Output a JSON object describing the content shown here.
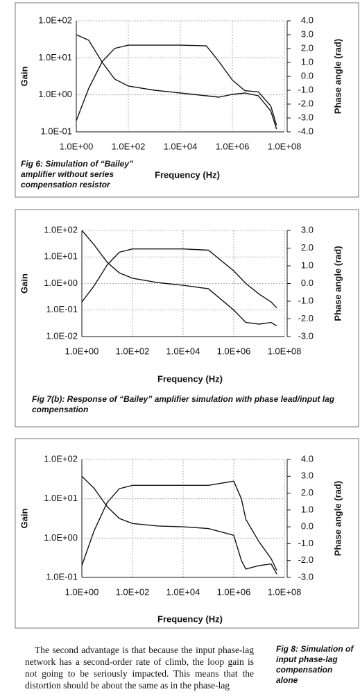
{
  "chart_data": [
    {
      "type": "line",
      "xlabel": "Frequency (Hz)",
      "ylabel": "Gain",
      "y2label": "Phase angle (rad)",
      "caption": "Fig 6: Simulation of “Bailey” amplifier without series compensation resistor",
      "xscale": "log",
      "yscale": "log",
      "grid": true,
      "x": [
        1,
        3,
        10,
        30,
        100,
        1000,
        10000,
        100000,
        300000,
        1000000,
        3000000,
        10000000,
        30000000,
        50000000
      ],
      "xlim": [
        1,
        100000000
      ],
      "xticks": [
        {
          "value": 1,
          "label": "1.0E+00"
        },
        {
          "value": 100,
          "label": "1.0E+02"
        },
        {
          "value": 10000,
          "label": "1.0E+04"
        },
        {
          "value": 1000000,
          "label": "1.0E+06"
        },
        {
          "value": 100000000,
          "label": "1.0E+08"
        }
      ],
      "ylim": [
        0.1,
        100
      ],
      "yticks": [
        {
          "value": 0.1,
          "label": "1.0E-01"
        },
        {
          "value": 1,
          "label": "1.0E+00"
        },
        {
          "value": 10,
          "label": "1.0E+01"
        },
        {
          "value": 100,
          "label": "1.0E+02"
        }
      ],
      "y2lim": [
        -4,
        4
      ],
      "y2ticks": [
        {
          "value": -4,
          "label": "-4.0"
        },
        {
          "value": -3,
          "label": "-3.0"
        },
        {
          "value": -2,
          "label": "-2.0"
        },
        {
          "value": -1,
          "label": "-1.0"
        },
        {
          "value": 0,
          "label": "0.0"
        },
        {
          "value": 1,
          "label": "1.0"
        },
        {
          "value": 2,
          "label": "2.0"
        },
        {
          "value": 3,
          "label": "3.0"
        },
        {
          "value": 4,
          "label": "4.0"
        }
      ],
      "series": [
        {
          "color": "#111111",
          "values": [
            0.2,
            1.5,
            8,
            18,
            22,
            22,
            22,
            21,
            8,
            2.5,
            1.3,
            1.2,
            0.5,
            0.15
          ]
        },
        {
          "color": "#111111",
          "axis": "y2",
          "values": [
            3.0,
            2.6,
            1.0,
            -0.2,
            -0.7,
            -1.0,
            -1.2,
            -1.4,
            -1.5,
            -1.3,
            -1.2,
            -1.4,
            -2.5,
            -3.8
          ]
        }
      ]
    },
    {
      "type": "line",
      "xlabel": "Frequency (Hz)",
      "ylabel": "Gain",
      "y2label": "Phase angle (rad)",
      "caption": "Fig 7(b): Response of “Bailey” amplifier simulation with phase lead/input lag compensation",
      "xscale": "log",
      "yscale": "log",
      "grid": true,
      "x": [
        1,
        3,
        10,
        30,
        100,
        1000,
        10000,
        100000,
        1000000,
        3000000,
        10000000,
        30000000,
        50000000
      ],
      "xlim": [
        1,
        100000000
      ],
      "xticks": [
        {
          "value": 1,
          "label": "1.0E+00"
        },
        {
          "value": 100,
          "label": "1.0E+02"
        },
        {
          "value": 10000,
          "label": "1.0E+04"
        },
        {
          "value": 1000000,
          "label": "1.0E+06"
        },
        {
          "value": 100000000,
          "label": "1.0E+08"
        }
      ],
      "ylim": [
        0.01,
        100
      ],
      "yticks": [
        {
          "value": 0.01,
          "label": "1.0E-02"
        },
        {
          "value": 0.1,
          "label": "1.0E-01"
        },
        {
          "value": 1,
          "label": "1.0E+00"
        },
        {
          "value": 10,
          "label": "1.0E+01"
        },
        {
          "value": 100,
          "label": "1.0E+02"
        }
      ],
      "y2lim": [
        -3,
        3
      ],
      "y2ticks": [
        {
          "value": -3,
          "label": "-3.0"
        },
        {
          "value": -2,
          "label": "-2.0"
        },
        {
          "value": -1,
          "label": "-1.0"
        },
        {
          "value": 0,
          "label": "0.0"
        },
        {
          "value": 1,
          "label": "1.0"
        },
        {
          "value": 2,
          "label": "2.0"
        },
        {
          "value": 3,
          "label": "3.0"
        }
      ],
      "series": [
        {
          "color": "#111111",
          "values": [
            0.2,
            0.8,
            5,
            15,
            20,
            20,
            20,
            18,
            3,
            1,
            0.4,
            0.2,
            0.12
          ]
        },
        {
          "color": "#111111",
          "axis": "y2",
          "values": [
            3.0,
            2.2,
            1.2,
            0.6,
            0.3,
            0.05,
            -0.1,
            -0.3,
            -1.5,
            -2.2,
            -2.3,
            -2.2,
            -2.4
          ]
        }
      ]
    },
    {
      "type": "line",
      "xlabel": "Frequency (Hz)",
      "ylabel": "Gain",
      "y2label": "Phase angle (rad)",
      "caption": "Fig 8: Simulation of input phase-lag compensation alone",
      "xscale": "log",
      "yscale": "log",
      "grid": true,
      "x": [
        1,
        3,
        10,
        30,
        100,
        1000,
        10000,
        100000,
        1000000,
        2000000,
        3000000,
        10000000,
        30000000,
        50000000
      ],
      "xlim": [
        1,
        100000000
      ],
      "xticks": [
        {
          "value": 1,
          "label": "1.0E+00"
        },
        {
          "value": 100,
          "label": "1.0E+02"
        },
        {
          "value": 10000,
          "label": "1.0E+04"
        },
        {
          "value": 1000000,
          "label": "1.0E+06"
        },
        {
          "value": 100000000,
          "label": "1.0E+08"
        }
      ],
      "ylim": [
        0.1,
        100
      ],
      "yticks": [
        {
          "value": 0.1,
          "label": "1.0E-01"
        },
        {
          "value": 1,
          "label": "1.0E+00"
        },
        {
          "value": 10,
          "label": "1.0E+01"
        },
        {
          "value": 100,
          "label": "1.0E+02"
        }
      ],
      "y2lim": [
        -3,
        4
      ],
      "y2ticks": [
        {
          "value": -3,
          "label": "-3.0"
        },
        {
          "value": -2,
          "label": "-2.0"
        },
        {
          "value": -1,
          "label": "-1.0"
        },
        {
          "value": 0,
          "label": "0.0"
        },
        {
          "value": 1,
          "label": "1.0"
        },
        {
          "value": 2,
          "label": "2.0"
        },
        {
          "value": 3,
          "label": "3.0"
        },
        {
          "value": 4,
          "label": "4.0"
        }
      ],
      "series": [
        {
          "color": "#111111",
          "values": [
            0.2,
            1.5,
            8,
            18,
            22,
            22,
            22,
            22,
            28,
            10,
            3,
            0.8,
            0.3,
            0.15
          ]
        },
        {
          "color": "#111111",
          "axis": "y2",
          "values": [
            3.0,
            2.3,
            1.2,
            0.5,
            0.2,
            0.05,
            0.0,
            -0.1,
            -0.5,
            -2.0,
            -2.5,
            -2.3,
            -2.2,
            -2.8
          ]
        }
      ]
    }
  ],
  "body_text": "The second advantage is that because the input phase-lag network has a second-order rate of climb, the loop gain is not going to be seriously impacted. This means that the distortion should be about the same as in the phase-lag"
}
